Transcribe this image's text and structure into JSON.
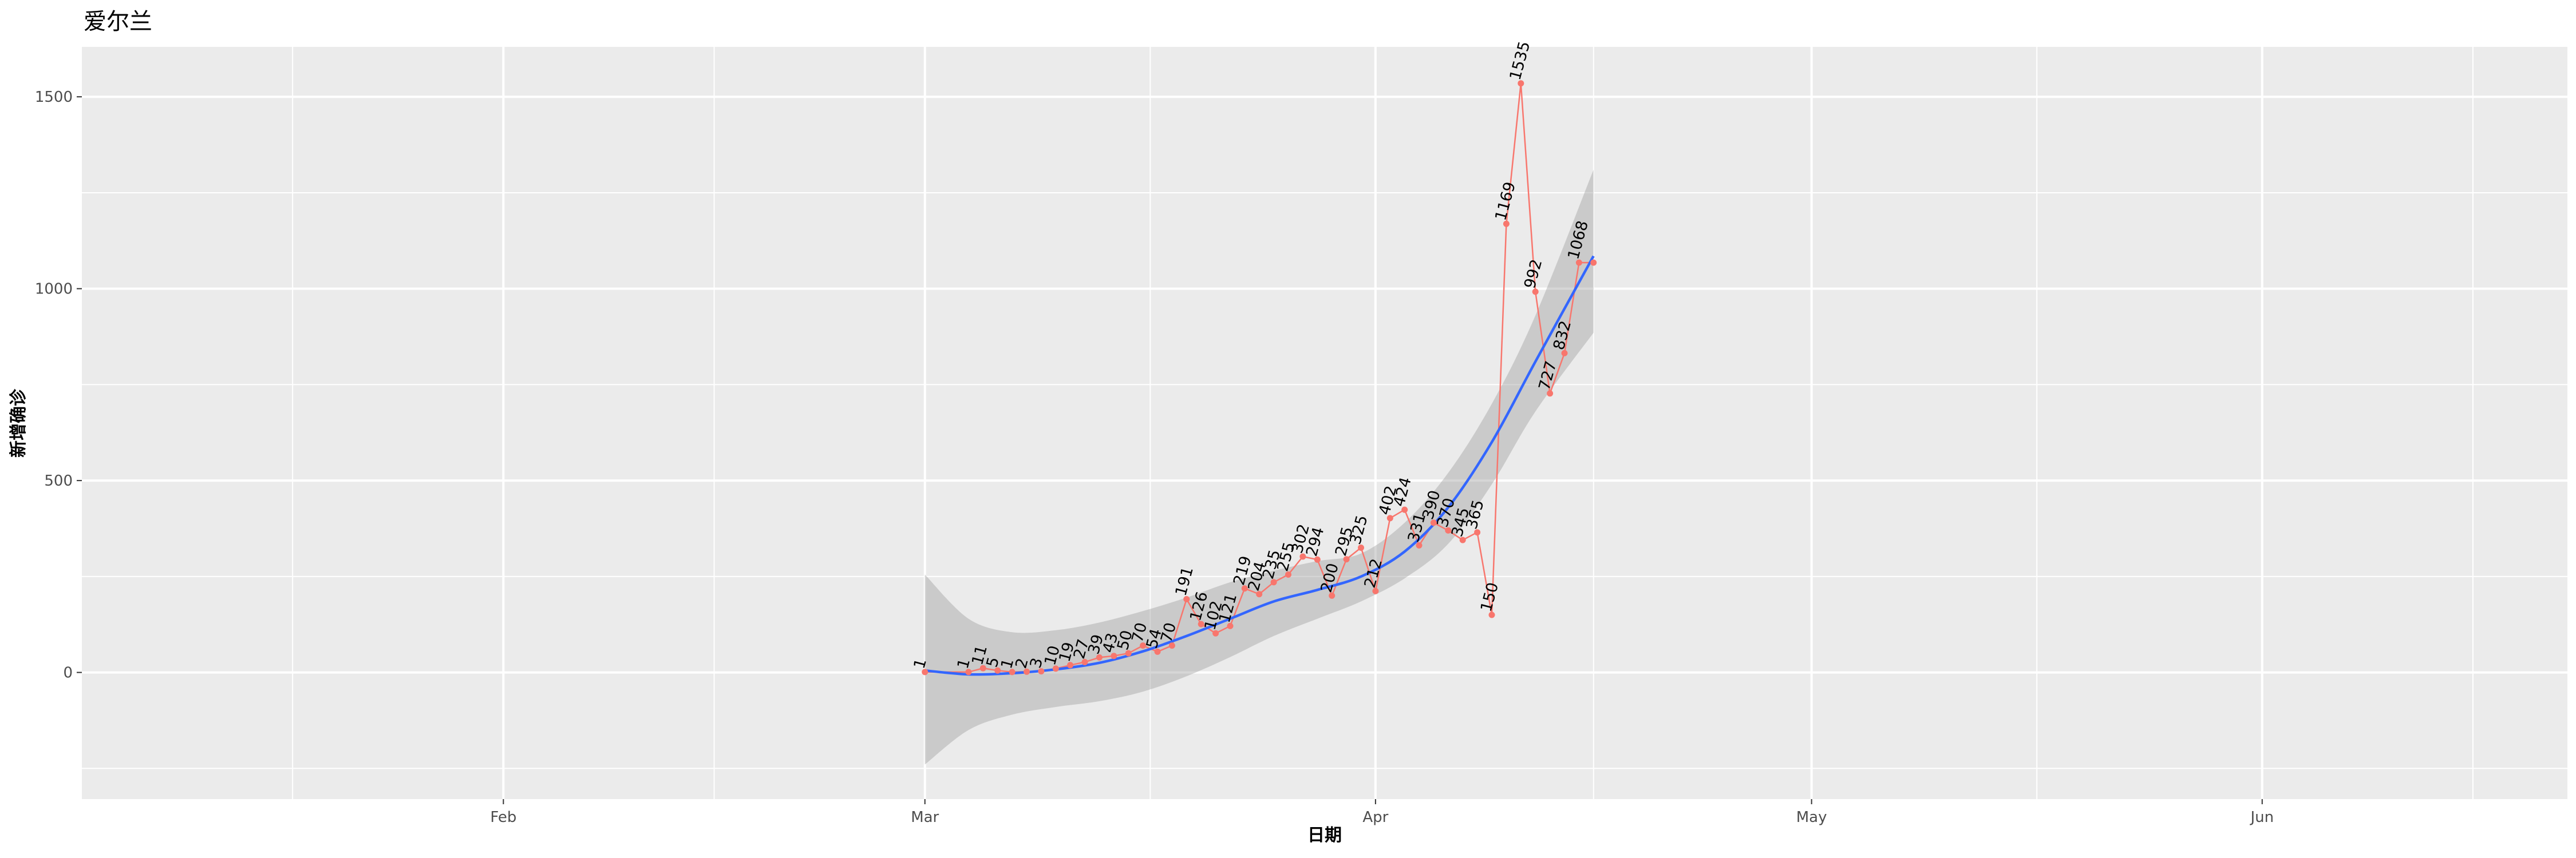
{
  "chart_data": {
    "type": "line",
    "title": "爱尔兰",
    "xlabel": "日期",
    "ylabel": "新增确诊",
    "x_tick_labels": [
      "Feb",
      "Mar",
      "Apr",
      "May",
      "Jun"
    ],
    "x_tick_dates": [
      "2020-02-01",
      "2020-03-01",
      "2020-04-01",
      "2020-05-01",
      "2020-06-01"
    ],
    "xlim": [
      "2020-01-03",
      "2020-06-22"
    ],
    "y_ticks": [
      0,
      500,
      1000,
      1500
    ],
    "ylim": [
      -330,
      1630
    ],
    "grid": true,
    "series": [
      {
        "role": "daily new cases (points, line and labels)",
        "color": "#F8766D",
        "x": [
          "2020-03-01",
          "2020-03-04",
          "2020-03-05",
          "2020-03-06",
          "2020-03-07",
          "2020-03-08",
          "2020-03-09",
          "2020-03-10",
          "2020-03-11",
          "2020-03-12",
          "2020-03-13",
          "2020-03-14",
          "2020-03-15",
          "2020-03-16",
          "2020-03-17",
          "2020-03-18",
          "2020-03-19",
          "2020-03-20",
          "2020-03-21",
          "2020-03-22",
          "2020-03-23",
          "2020-03-24",
          "2020-03-25",
          "2020-03-26",
          "2020-03-27",
          "2020-03-28",
          "2020-03-29",
          "2020-03-30",
          "2020-03-31",
          "2020-04-01",
          "2020-04-02",
          "2020-04-03",
          "2020-04-04",
          "2020-04-05",
          "2020-04-06",
          "2020-04-07",
          "2020-04-08",
          "2020-04-09",
          "2020-04-10",
          "2020-04-11",
          "2020-04-12",
          "2020-04-13",
          "2020-04-14",
          "2020-04-15",
          "2020-04-16"
        ],
        "values": [
          1,
          1,
          11,
          5,
          1,
          2,
          3,
          10,
          19,
          27,
          39,
          43,
          50,
          70,
          54,
          70,
          191,
          126,
          102,
          121,
          219,
          204,
          235,
          255,
          302,
          294,
          200,
          295,
          325,
          212,
          402,
          424,
          331,
          390,
          370,
          345,
          365,
          150,
          1169,
          1535,
          992,
          727,
          832,
          1068,
          1068
        ],
        "labels": [
          "1",
          "1",
          "11",
          "5",
          "1",
          "2",
          "3",
          "10",
          "19",
          "27",
          "39",
          "43",
          "50",
          "70",
          "54",
          "70",
          "191",
          "126",
          "102",
          "121",
          "219",
          "204",
          "235",
          "255",
          "302",
          "294",
          "200",
          "295",
          "325",
          "212",
          "402",
          "424",
          "331",
          "390",
          "370",
          "345",
          "365",
          "150",
          "1169",
          "1535",
          "992",
          "727",
          "832",
          "1068",
          ""
        ]
      },
      {
        "role": "smoothed trend",
        "color": "#3366FF",
        "x": [
          "2020-03-01",
          "2020-03-04",
          "2020-03-07",
          "2020-03-10",
          "2020-03-13",
          "2020-03-16",
          "2020-03-19",
          "2020-03-22",
          "2020-03-25",
          "2020-03-28",
          "2020-03-31",
          "2020-04-03",
          "2020-04-06",
          "2020-04-09",
          "2020-04-12",
          "2020-04-16"
        ],
        "values": [
          5,
          -5,
          -2,
          8,
          25,
          55,
          95,
          140,
          185,
          215,
          250,
          315,
          430,
          600,
          810,
          1085
        ]
      },
      {
        "role": "confidence band",
        "color": "#999999",
        "x": [
          "2020-03-01",
          "2020-03-04",
          "2020-03-07",
          "2020-03-10",
          "2020-03-13",
          "2020-03-16",
          "2020-03-19",
          "2020-03-22",
          "2020-03-25",
          "2020-03-28",
          "2020-03-31",
          "2020-04-03",
          "2020-04-06",
          "2020-04-09",
          "2020-04-12",
          "2020-04-16"
        ],
        "upper": [
          255,
          140,
          105,
          110,
          130,
          160,
          195,
          235,
          265,
          290,
          310,
          390,
          520,
          700,
          930,
          1310
        ],
        "lower": [
          -240,
          -150,
          -110,
          -90,
          -75,
          -50,
          -10,
          40,
          95,
          140,
          185,
          245,
          335,
          490,
          680,
          885
        ]
      }
    ]
  }
}
